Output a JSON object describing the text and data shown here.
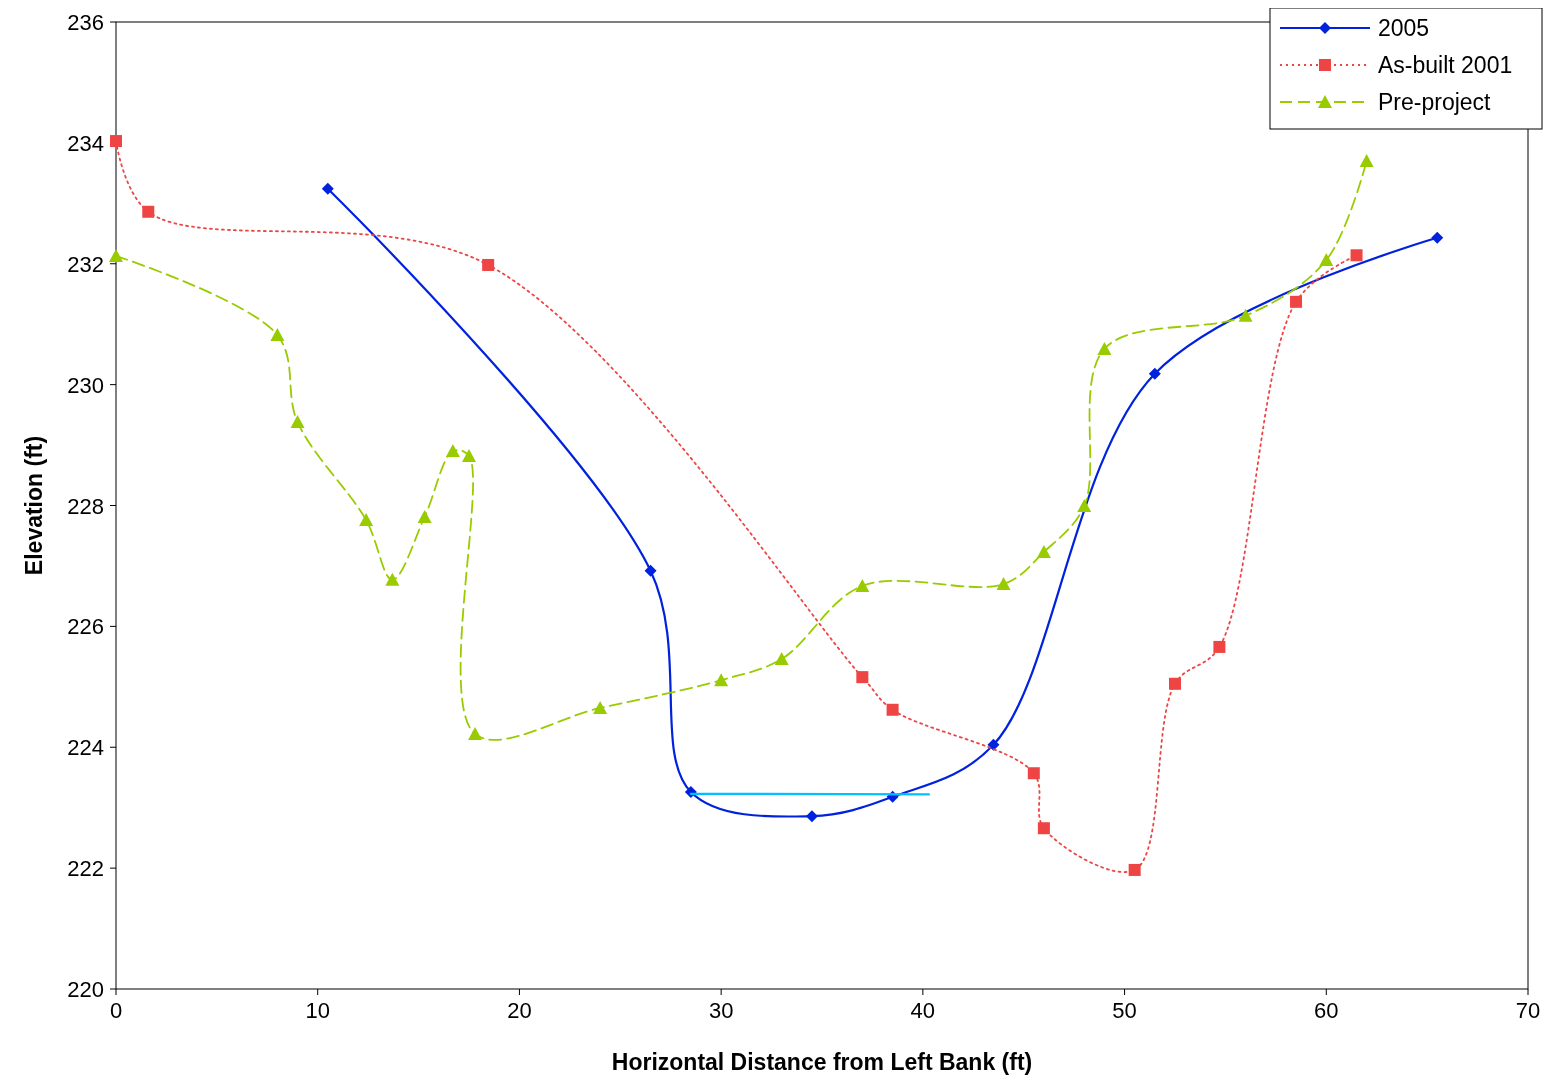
{
  "chart_data": {
    "type": "line",
    "xlabel": "Horizontal Distance from Left Bank (ft)",
    "ylabel": "Elevation (ft)",
    "xlim": [
      0,
      70
    ],
    "xticks": [
      0,
      10,
      20,
      30,
      40,
      50,
      60,
      70
    ],
    "ylim": [
      220,
      236
    ],
    "yticks": [
      220,
      222,
      224,
      226,
      228,
      230,
      232,
      234,
      236
    ],
    "grid": false,
    "legend": "top right",
    "series": [
      {
        "name": "2005",
        "color": "#0022dd",
        "marker": "diamond",
        "line_style": "solid",
        "x": [
          10.5,
          26.5,
          28.5,
          34.5,
          38.5,
          43.5,
          51.5,
          65.5
        ],
        "values": [
          233.24,
          226.92,
          223.26,
          222.86,
          223.18,
          224.04,
          230.18,
          232.43
        ]
      },
      {
        "name": "As-built 2001",
        "color": "#ee4444",
        "marker": "square",
        "line_style": "dotted",
        "x": [
          0,
          1.6,
          18.45,
          37.0,
          38.5,
          45.5,
          46.0,
          50.5,
          52.5,
          54.7,
          58.5,
          61.5
        ],
        "values": [
          234.03,
          232.86,
          231.98,
          225.16,
          224.62,
          223.57,
          222.66,
          221.97,
          225.05,
          225.66,
          231.37,
          232.14
        ]
      },
      {
        "name": "Pre-project",
        "color": "#99cc00",
        "marker": "triangle",
        "line_style": "dashed",
        "x": [
          0,
          8.0,
          9.0,
          12.4,
          13.7,
          15.3,
          16.7,
          17.5,
          17.8,
          24.0,
          30.0,
          33.0,
          37.0,
          44.0,
          46.0,
          48.0,
          49.0,
          56.0,
          60.0,
          62.0
        ],
        "values": [
          232.13,
          230.82,
          229.38,
          227.76,
          226.77,
          227.81,
          228.9,
          228.82,
          224.22,
          224.65,
          225.11,
          225.46,
          226.67,
          226.7,
          227.23,
          227.99,
          230.59,
          231.14,
          232.06,
          233.7
        ]
      },
      {
        "type": "line",
        "color": "#00c0ff",
        "marker": "none",
        "line_style": "solid",
        "x": [
          28.5,
          40.3
        ],
        "values": [
          223.23,
          223.22
        ]
      }
    ]
  }
}
